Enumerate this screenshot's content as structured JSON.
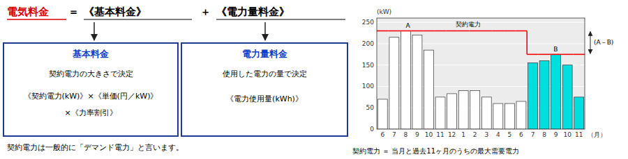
{
  "chart_data": {
    "type": "bar",
    "title": "電気料金",
    "annotations": [
      "＝",
      "《基本料金》",
      "＋",
      "《電力量料金》",
      "基本料金",
      "契約電力の大きさで決定",
      "《契約電力(kW)》×《単価(円／kW)》",
      "×《力率割引》",
      "電力量料金",
      "使用した電力の量で決定",
      "《電力使用量(kWh)》",
      "契約電力は一般的に「デマンド電力」と言います。",
      "契約電力 ＝ 当月と過去11ヶ月のうちの最大需要電力"
    ],
    "y_label": "(kW)",
    "x_label": "（月）",
    "categories": [
      "6",
      "7",
      "8",
      "9",
      "10",
      "11",
      "12",
      "1",
      "2",
      "3",
      "4",
      "5",
      "6",
      "7",
      "8",
      "9",
      "10",
      "11"
    ],
    "values": [
      70,
      215,
      230,
      220,
      185,
      75,
      83,
      90,
      90,
      75,
      60,
      60,
      65,
      155,
      160,
      175,
      150,
      75
    ],
    "colors": [
      "#ffffff",
      "#ffffff",
      "#ffffff",
      "#ffffff",
      "#ffffff",
      "#ffffff",
      "#ffffff",
      "#ffffff",
      "#ffffff",
      "#ffffff",
      "#ffffff",
      "#ffffff",
      "#ffffff",
      "#00dede",
      "#00dede",
      "#00dede",
      "#00dede",
      "#00dede"
    ],
    "ylim": [
      0,
      260
    ],
    "yticks": [
      0,
      50,
      100,
      150,
      200,
      250
    ],
    "grid": true,
    "contract": {
      "label": "契約電力",
      "color": "#ff0000",
      "values": [
        230,
        230,
        230,
        230,
        230,
        230,
        230,
        230,
        230,
        230,
        230,
        230,
        230,
        175,
        175,
        175,
        175,
        175
      ],
      "markers": [
        {
          "label": "A",
          "value": 230
        },
        {
          "label": "B",
          "value": 175
        }
      ],
      "difference_label": "(A－B)"
    }
  }
}
